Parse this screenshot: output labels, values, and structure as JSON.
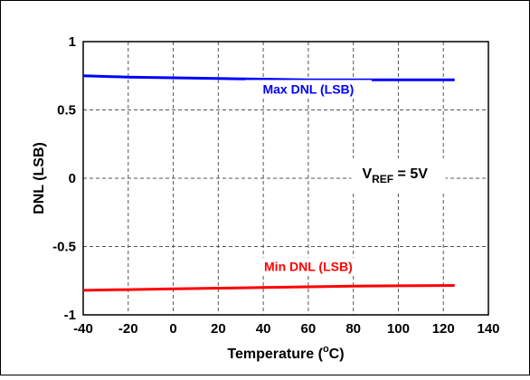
{
  "chart_data": {
    "type": "line",
    "xlabel": "Temperature (°C)",
    "xlabel_parts": {
      "prefix": "Temperature (",
      "superscript": "o",
      "suffix": "C)"
    },
    "ylabel": "DNL (LSB)",
    "xlim": [
      -40,
      140
    ],
    "ylim": [
      -1,
      1
    ],
    "xticks": [
      -40,
      -20,
      0,
      20,
      40,
      60,
      80,
      100,
      120,
      140
    ],
    "yticks": [
      -1,
      -0.5,
      0,
      0.5,
      1
    ],
    "ytick_labels": [
      "-1",
      "-0.5",
      "0",
      "0.5",
      "1"
    ],
    "grid": true,
    "series": [
      {
        "name": "Max DNL (LSB)",
        "color": "#0000ff",
        "x": [
          -40,
          -20,
          0,
          20,
          40,
          60,
          80,
          100,
          125
        ],
        "y": [
          0.75,
          0.74,
          0.735,
          0.73,
          0.725,
          0.72,
          0.72,
          0.72,
          0.72
        ]
      },
      {
        "name": "Min DNL (LSB)",
        "color": "#ff0000",
        "x": [
          -40,
          -20,
          0,
          20,
          40,
          60,
          80,
          100,
          125
        ],
        "y": [
          -0.82,
          -0.815,
          -0.81,
          -0.805,
          -0.8,
          -0.795,
          -0.79,
          -0.787,
          -0.785
        ]
      }
    ],
    "annotations": [
      {
        "text": "Max DNL (LSB)",
        "color": "#0000ff",
        "x": 60,
        "y": 0.62
      },
      {
        "text": "Min DNL (LSB)",
        "color": "#ff0000",
        "x": 60,
        "y": -0.68
      },
      {
        "text_main": "V",
        "text_sub": "REF",
        "text_rest": " = 5V",
        "color": "#000000",
        "x": 100,
        "y": 0
      }
    ]
  }
}
